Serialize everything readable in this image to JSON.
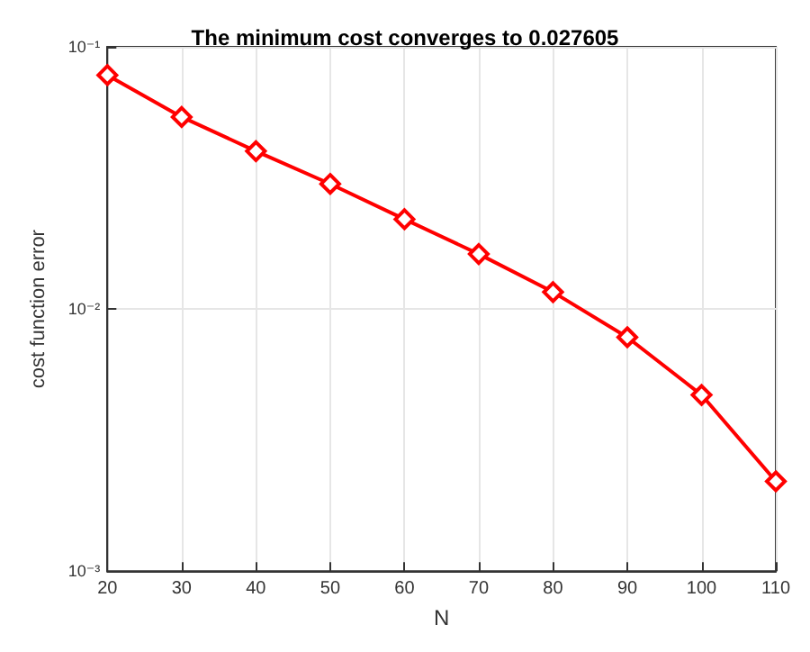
{
  "chart_data": {
    "type": "line",
    "title": "The minimum cost converges to 0.027605",
    "xlabel": "N",
    "ylabel": "cost function error",
    "x": [
      20,
      30,
      40,
      50,
      60,
      70,
      80,
      90,
      100,
      110
    ],
    "series": [
      {
        "color": "#ff0000",
        "values": [
          0.078,
          0.054,
          0.04,
          0.03,
          0.022,
          0.0162,
          0.0116,
          0.0078,
          0.0047,
          0.0022
        ]
      }
    ],
    "xlim": [
      20,
      110
    ],
    "xticks": [
      20,
      30,
      40,
      50,
      60,
      70,
      80,
      90,
      100,
      110
    ],
    "ylim": [
      0.001,
      0.1
    ],
    "yticks": [
      {
        "value": 0.001,
        "label": "10⁻³"
      },
      {
        "value": 0.01,
        "label": "10⁻²"
      },
      {
        "value": 0.1,
        "label": "10⁻¹"
      }
    ],
    "log": "y",
    "grid": true,
    "marker": "diamond",
    "line_style": "solid"
  }
}
